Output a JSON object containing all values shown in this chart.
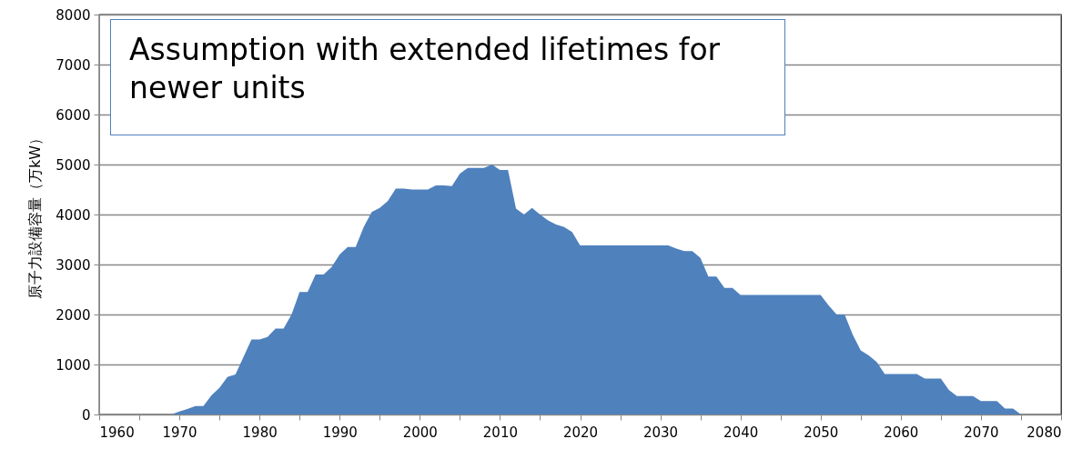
{
  "chart_data": {
    "type": "area",
    "ylabel": "原子力設備容量（万kW）",
    "annotations": [
      "Assumption with extended lifetimes for newer units"
    ],
    "x": [
      1960,
      1969,
      1970,
      1971,
      1972,
      1973,
      1974,
      1975,
      1976,
      1977,
      1978,
      1979,
      1980,
      1981,
      1982,
      1983,
      1984,
      1985,
      1986,
      1987,
      1988,
      1989,
      1990,
      1991,
      1992,
      1993,
      1994,
      1995,
      1996,
      1997,
      1998,
      1999,
      2000,
      2001,
      2002,
      2003,
      2004,
      2005,
      2006,
      2007,
      2008,
      2009,
      2010,
      2011,
      2012,
      2013,
      2014,
      2015,
      2016,
      2017,
      2018,
      2019,
      2020,
      2031,
      2032,
      2033,
      2034,
      2035,
      2036,
      2037,
      2038,
      2039,
      2040,
      2050,
      2051,
      2052,
      2053,
      2054,
      2055,
      2056,
      2057,
      2058,
      2062,
      2063,
      2065,
      2066,
      2067,
      2069,
      2070,
      2072,
      2073,
      2074,
      2075
    ],
    "series": [
      {
        "color": "#4f81bd",
        "values": [
          0,
          0,
          60,
          110,
          170,
          170,
          380,
          530,
          750,
          800,
          1150,
          1500,
          1500,
          1550,
          1720,
          1720,
          2000,
          2450,
          2450,
          2800,
          2800,
          2950,
          3200,
          3350,
          3350,
          3750,
          4050,
          4130,
          4270,
          4520,
          4520,
          4500,
          4500,
          4500,
          4580,
          4580,
          4570,
          4820,
          4930,
          4930,
          4930,
          5000,
          4890,
          4890,
          4120,
          4000,
          4130,
          4000,
          3880,
          3800,
          3750,
          3650,
          3380,
          3380,
          3320,
          3270,
          3270,
          3130,
          2760,
          2760,
          2530,
          2530,
          2390,
          2390,
          2180,
          2000,
          2000,
          1600,
          1280,
          1180,
          1050,
          810,
          810,
          720,
          720,
          490,
          370,
          370,
          270,
          270,
          120,
          120,
          0
        ]
      }
    ],
    "xlim": [
      1960,
      2080
    ],
    "xticks": [
      1960,
      {
        "value": 1965,
        "label": null
      },
      1970,
      {
        "value": 1975,
        "label": null
      },
      1980,
      {
        "value": 1985,
        "label": null
      },
      1990,
      {
        "value": 1995,
        "label": null
      },
      2000,
      {
        "value": 2005,
        "label": null
      },
      2010,
      {
        "value": 2015,
        "label": null
      },
      2020,
      {
        "value": 2025,
        "label": null
      },
      2030,
      {
        "value": 2035,
        "label": null
      },
      2040,
      {
        "value": 2045,
        "label": null
      },
      2050,
      {
        "value": 2055,
        "label": null
      },
      2060,
      {
        "value": 2065,
        "label": null
      },
      2070,
      {
        "value": 2075,
        "label": null
      },
      2080
    ],
    "ylim": [
      0,
      8000
    ],
    "yticks": [
      0,
      1000,
      2000,
      3000,
      4000,
      5000,
      6000,
      7000,
      8000
    ],
    "grid": "y"
  }
}
